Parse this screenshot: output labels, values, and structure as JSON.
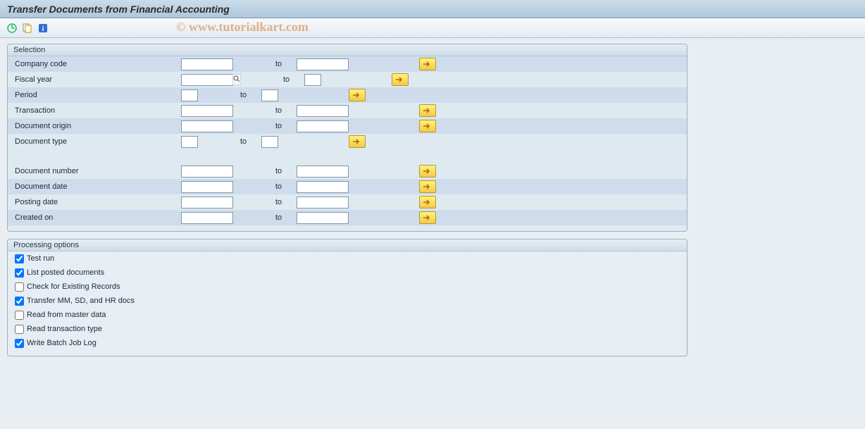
{
  "title": "Transfer Documents from Financial Accounting",
  "watermark": "© www.tutorialkart.com",
  "toolbar": {
    "btn1_name": "execute-icon",
    "btn2_name": "variant-icon",
    "btn3_name": "info-icon"
  },
  "selection": {
    "header": "Selection",
    "to_label": "to",
    "fields": [
      {
        "label": "Company code",
        "from": "",
        "to": "",
        "from_w": "w-lg",
        "to_w": "w-lg",
        "alt": true,
        "f4": false
      },
      {
        "label": "Fiscal year",
        "from": "",
        "to": "",
        "from_w": "w-lg",
        "to_w": "w-sm",
        "alt": false,
        "f4": true
      },
      {
        "label": "Period",
        "from": "",
        "to": "",
        "from_w": "w-sm",
        "to_w": "w-sm",
        "alt": true,
        "f4": false
      },
      {
        "label": "Transaction",
        "from": "",
        "to": "",
        "from_w": "w-lg",
        "to_w": "w-lg",
        "alt": false,
        "f4": false
      },
      {
        "label": "Document origin",
        "from": "",
        "to": "",
        "from_w": "w-lg",
        "to_w": "w-lg",
        "alt": true,
        "f4": false
      },
      {
        "label": "Document type",
        "from": "",
        "to": "",
        "from_w": "w-sm",
        "to_w": "w-sm",
        "alt": false,
        "f4": false
      }
    ],
    "fields2": [
      {
        "label": "Document number",
        "from": "",
        "to": "",
        "from_w": "w-lg",
        "to_w": "w-lg",
        "alt": false,
        "f4": false
      },
      {
        "label": "Document date",
        "from": "",
        "to": "",
        "from_w": "w-lg",
        "to_w": "w-lg",
        "alt": true,
        "f4": false
      },
      {
        "label": "Posting date",
        "from": "",
        "to": "",
        "from_w": "w-lg",
        "to_w": "w-lg",
        "alt": false,
        "f4": false
      },
      {
        "label": "Created on",
        "from": "",
        "to": "",
        "from_w": "w-lg",
        "to_w": "w-lg",
        "alt": true,
        "f4": false
      }
    ]
  },
  "processing": {
    "header": "Processing options",
    "options": [
      {
        "label": "Test run",
        "checked": true
      },
      {
        "label": "List posted documents",
        "checked": true
      },
      {
        "label": "Check for Existing Records",
        "checked": false
      },
      {
        "label": "Transfer MM, SD, and HR docs",
        "checked": true
      },
      {
        "label": "Read from master data",
        "checked": false
      },
      {
        "label": "Read transaction type",
        "checked": false
      },
      {
        "label": "Write Batch Job Log",
        "checked": true
      }
    ]
  },
  "colors": {
    "title_bg_top": "#cbdce9",
    "title_bg_bot": "#aec7da",
    "canvas_bg": "#e9eef2",
    "group_bg": "#dfe9f0",
    "group_border": "#9ab2c4",
    "alt_row": "#cfdceb",
    "multi_btn_top": "#fff27a",
    "multi_btn_bot": "#f2c94a"
  }
}
